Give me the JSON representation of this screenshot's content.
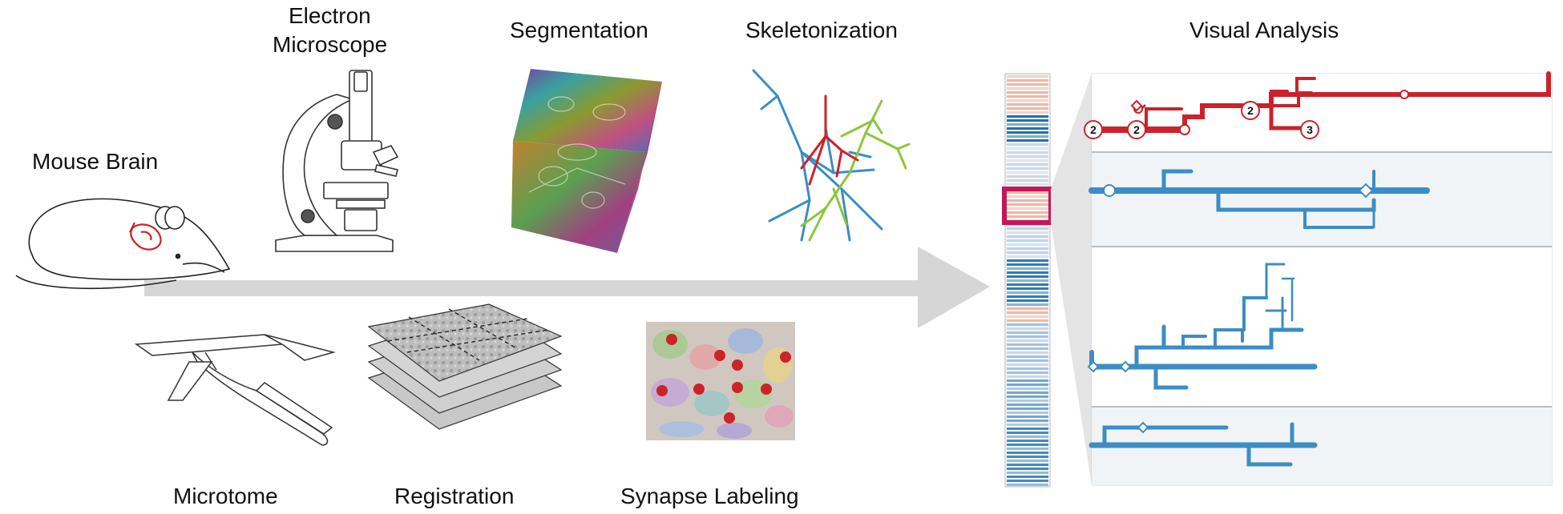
{
  "stages": {
    "mouse_brain": "Mouse Brain",
    "electron_microscope_line1": "Electron",
    "electron_microscope_line2": "Microscope",
    "segmentation": "Segmentation",
    "skeletonization": "Skeletonization",
    "visual_analysis": "Visual Analysis",
    "microtome": "Microtome",
    "registration": "Registration",
    "synapse_labeling": "Synapse Labeling"
  },
  "dendrogram_badges": {
    "red_a": "2",
    "red_b": "2",
    "red_c": "2",
    "red_d": "3"
  },
  "colors": {
    "arrow": "#d6d6d6",
    "red_neuron": "#cc2229",
    "blue_neuron": "#3c8dc5",
    "green_neuron": "#8cc63f",
    "highlight": "#c2185b",
    "panel_bg": "#f1f4f7"
  }
}
